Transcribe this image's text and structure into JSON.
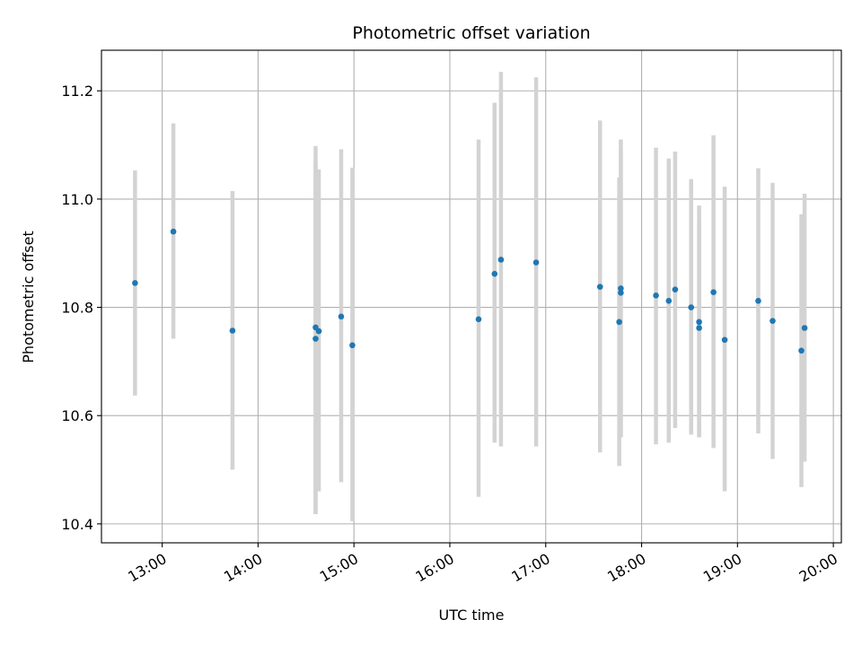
{
  "chart_data": {
    "type": "scatter",
    "title": "Photometric offset variation",
    "xlabel": "UTC time",
    "ylabel": "Photometric offset",
    "x_ticks": [
      "13:00",
      "14:00",
      "15:00",
      "16:00",
      "17:00",
      "18:00",
      "19:00",
      "20:00"
    ],
    "y_ticks": [
      "10.4",
      "10.6",
      "10.8",
      "11.0",
      "11.2"
    ],
    "xlim": [
      "12:22",
      "20:05"
    ],
    "ylim": [
      10.365,
      11.275
    ],
    "grid": true,
    "colors": {
      "point": "#1f77b4",
      "errorbar": "#d3d3d3",
      "grid": "#b0b0b0"
    },
    "series": [
      {
        "points": [
          {
            "t": "12:43",
            "y": 10.845,
            "lo": 10.637,
            "hi": 11.053
          },
          {
            "t": "13:07",
            "y": 10.94,
            "lo": 10.742,
            "hi": 11.14
          },
          {
            "t": "13:44",
            "y": 10.757,
            "lo": 10.5,
            "hi": 11.015
          },
          {
            "t": "14:36",
            "y": 10.763,
            "lo": 10.418,
            "hi": 11.098
          },
          {
            "t": "14:36",
            "y": 10.742,
            "lo": 10.418,
            "hi": 11.07
          },
          {
            "t": "14:38",
            "y": 10.756,
            "lo": 10.46,
            "hi": 11.055
          },
          {
            "t": "14:52",
            "y": 10.783,
            "lo": 10.477,
            "hi": 11.092
          },
          {
            "t": "14:59",
            "y": 10.73,
            "lo": 10.405,
            "hi": 11.058
          },
          {
            "t": "16:18",
            "y": 10.778,
            "lo": 10.45,
            "hi": 11.11
          },
          {
            "t": "16:28",
            "y": 10.862,
            "lo": 10.55,
            "hi": 11.178
          },
          {
            "t": "16:32",
            "y": 10.888,
            "lo": 10.543,
            "hi": 11.235
          },
          {
            "t": "16:54",
            "y": 10.883,
            "lo": 10.543,
            "hi": 11.225
          },
          {
            "t": "17:34",
            "y": 10.838,
            "lo": 10.532,
            "hi": 11.145
          },
          {
            "t": "17:46",
            "y": 10.773,
            "lo": 10.507,
            "hi": 11.04
          },
          {
            "t": "17:47",
            "y": 10.827,
            "lo": 10.56,
            "hi": 11.09
          },
          {
            "t": "17:47",
            "y": 10.835,
            "lo": 10.56,
            "hi": 11.11
          },
          {
            "t": "18:09",
            "y": 10.822,
            "lo": 10.547,
            "hi": 11.095
          },
          {
            "t": "18:17",
            "y": 10.812,
            "lo": 10.55,
            "hi": 11.075
          },
          {
            "t": "18:21",
            "y": 10.833,
            "lo": 10.577,
            "hi": 11.088
          },
          {
            "t": "18:31",
            "y": 10.8,
            "lo": 10.565,
            "hi": 11.037
          },
          {
            "t": "18:36",
            "y": 10.773,
            "lo": 10.56,
            "hi": 10.988
          },
          {
            "t": "18:36",
            "y": 10.762,
            "lo": 10.56,
            "hi": 10.962
          },
          {
            "t": "18:45",
            "y": 10.828,
            "lo": 10.54,
            "hi": 11.118
          },
          {
            "t": "18:52",
            "y": 10.74,
            "lo": 10.46,
            "hi": 11.023
          },
          {
            "t": "19:13",
            "y": 10.812,
            "lo": 10.567,
            "hi": 11.057
          },
          {
            "t": "19:22",
            "y": 10.775,
            "lo": 10.52,
            "hi": 11.03
          },
          {
            "t": "19:40",
            "y": 10.72,
            "lo": 10.468,
            "hi": 10.972
          },
          {
            "t": "19:42",
            "y": 10.762,
            "lo": 10.515,
            "hi": 11.01
          }
        ]
      }
    ]
  }
}
